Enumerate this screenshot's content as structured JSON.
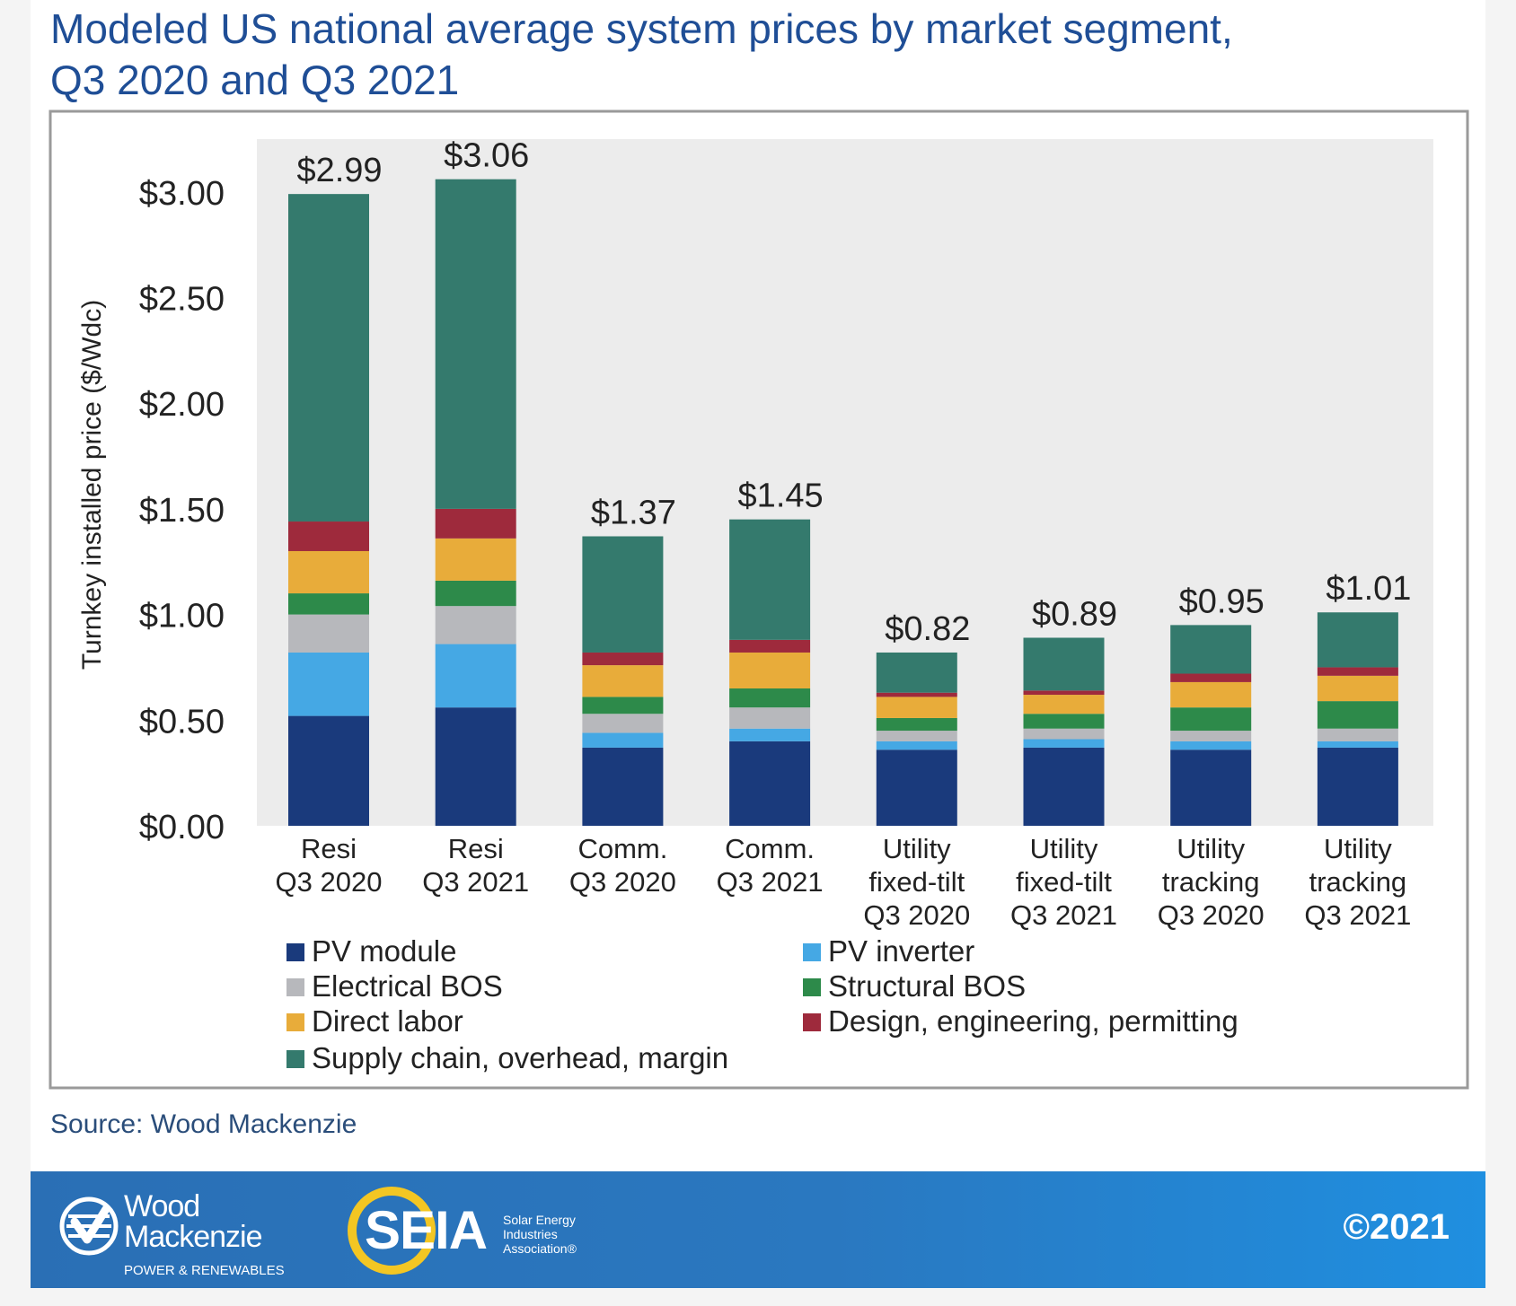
{
  "title_line1": "Modeled US national average system prices by market segment,",
  "title_line2": "Q3 2020 and Q3 2021",
  "source": "Source: Wood Mackenzie",
  "footer": {
    "wm_name_line1": "Wood",
    "wm_name_line2": "Mackenzie",
    "wm_tagline": "POWER & RENEWABLES",
    "seia_text": "SEIA",
    "seia_tag_line1": "Solar Energy",
    "seia_tag_line2": "Industries",
    "seia_tag_line3": "Association®",
    "copyright": "©2021",
    "colors": {
      "bar": "#2a72bb",
      "seia_ring": "#f3c623"
    }
  },
  "chart_data": {
    "type": "bar",
    "stacked": true,
    "ylabel": "Turnkey installed price ($/Wdc)",
    "xlabel": "",
    "ylim": [
      0,
      3.25
    ],
    "y_ticks": [
      0,
      0.5,
      1.0,
      1.5,
      2.0,
      2.5,
      3.0
    ],
    "y_tick_labels": [
      "$0.00",
      "$0.50",
      "$1.00",
      "$1.50",
      "$2.00",
      "$2.50",
      "$3.00"
    ],
    "grid": false,
    "plot_background": "#ececec",
    "legend_position": "bottom",
    "categories": [
      [
        "Resi",
        "Q3 2020"
      ],
      [
        "Resi",
        "Q3 2021"
      ],
      [
        "Comm.",
        "Q3 2020"
      ],
      [
        "Comm.",
        "Q3 2021"
      ],
      [
        "Utility",
        "fixed-tilt",
        "Q3 2020"
      ],
      [
        "Utility",
        "fixed-tilt",
        "Q3 2021"
      ],
      [
        "Utility",
        "tracking",
        "Q3 2020"
      ],
      [
        "Utility",
        "tracking",
        "Q3 2021"
      ]
    ],
    "totals": [
      2.99,
      3.06,
      1.37,
      1.45,
      0.82,
      0.89,
      0.95,
      1.01
    ],
    "total_labels": [
      "$2.99",
      "$3.06",
      "$1.37",
      "$1.45",
      "$0.82",
      "$0.89",
      "$0.95",
      "$1.01"
    ],
    "series": [
      {
        "name": "PV module",
        "color": "#1a3a7c",
        "values": [
          0.52,
          0.56,
          0.37,
          0.4,
          0.36,
          0.37,
          0.36,
          0.37
        ]
      },
      {
        "name": "PV inverter",
        "color": "#45a8e4",
        "values": [
          0.3,
          0.3,
          0.07,
          0.06,
          0.04,
          0.04,
          0.04,
          0.03
        ]
      },
      {
        "name": "Electrical BOS",
        "color": "#b7b8bc",
        "values": [
          0.18,
          0.18,
          0.09,
          0.1,
          0.05,
          0.05,
          0.05,
          0.06
        ]
      },
      {
        "name": "Structural BOS",
        "color": "#2d8a4a",
        "values": [
          0.1,
          0.12,
          0.08,
          0.09,
          0.06,
          0.07,
          0.11,
          0.13
        ]
      },
      {
        "name": "Direct labor",
        "color": "#e8ac3a",
        "values": [
          0.2,
          0.2,
          0.15,
          0.17,
          0.1,
          0.09,
          0.12,
          0.12
        ]
      },
      {
        "name": "Design, engineering, permitting",
        "color": "#9e2a3c",
        "values": [
          0.14,
          0.14,
          0.06,
          0.06,
          0.02,
          0.02,
          0.04,
          0.04
        ]
      },
      {
        "name": "Supply chain, overhead, margin",
        "color": "#347a6d",
        "values": [
          1.55,
          1.56,
          0.55,
          0.57,
          0.19,
          0.25,
          0.23,
          0.26
        ]
      }
    ],
    "legend_order": [
      "PV module",
      "PV inverter",
      "Electrical BOS",
      "Structural BOS",
      "Direct labor",
      "Design, engineering, permitting",
      "Supply chain, overhead, margin"
    ]
  }
}
